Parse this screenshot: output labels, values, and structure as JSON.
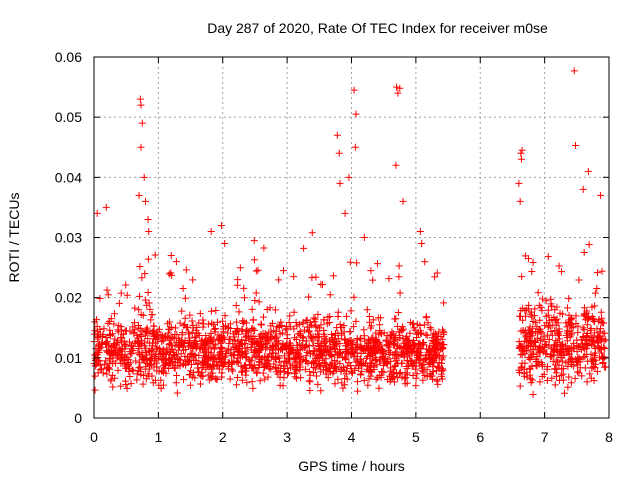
{
  "chart_data": {
    "type": "scatter",
    "title": "Day 287 of 2020, Rate Of TEC Index for receiver m0se",
    "xlabel": "GPS time / hours",
    "ylabel": "ROTI / TECUs",
    "xlim": [
      0,
      8
    ],
    "ylim": [
      0,
      0.06
    ],
    "xticks": [
      "0",
      "1",
      "2",
      "3",
      "4",
      "5",
      "6",
      "7",
      "8"
    ],
    "yticks": [
      "0",
      "0.01",
      "0.02",
      "0.03",
      "0.04",
      "0.05",
      "0.06"
    ],
    "grid": true,
    "marker": "+",
    "color": "#ff0000",
    "series": [
      {
        "name": "ROTI",
        "segments": [
          {
            "x_start": 0.0,
            "x_end": 5.45,
            "base": 0.011,
            "spread": 0.005
          },
          {
            "x_start": 6.6,
            "x_end": 7.95,
            "base": 0.012,
            "spread": 0.006
          }
        ],
        "highlights": [
          [
            0.72,
            0.053
          ],
          [
            0.73,
            0.052
          ],
          [
            0.75,
            0.049
          ],
          [
            0.73,
            0.045
          ],
          [
            0.78,
            0.04
          ],
          [
            0.7,
            0.037
          ],
          [
            0.8,
            0.036
          ],
          [
            0.84,
            0.033
          ],
          [
            0.85,
            0.031
          ],
          [
            0.05,
            0.034
          ],
          [
            0.19,
            0.035
          ],
          [
            3.78,
            0.047
          ],
          [
            3.81,
            0.044
          ],
          [
            4.04,
            0.0545
          ],
          [
            4.07,
            0.0505
          ],
          [
            4.06,
            0.045
          ],
          [
            3.82,
            0.039
          ],
          [
            3.96,
            0.04
          ],
          [
            3.9,
            0.034
          ],
          [
            4.7,
            0.055
          ],
          [
            4.72,
            0.054
          ],
          [
            4.75,
            0.0548
          ],
          [
            4.69,
            0.042
          ],
          [
            4.8,
            0.036
          ],
          [
            6.63,
            0.044
          ],
          [
            6.65,
            0.0445
          ],
          [
            6.64,
            0.043
          ],
          [
            6.6,
            0.039
          ],
          [
            6.62,
            0.036
          ],
          [
            7.46,
            0.0577
          ],
          [
            7.48,
            0.0453
          ],
          [
            7.68,
            0.041
          ],
          [
            7.6,
            0.038
          ],
          [
            7.87,
            0.037
          ],
          [
            1.82,
            0.031
          ],
          [
            1.98,
            0.032
          ],
          [
            2.03,
            0.029
          ],
          [
            1.2,
            0.027
          ],
          [
            1.28,
            0.026
          ],
          [
            4.2,
            0.03
          ],
          [
            5.07,
            0.031
          ],
          [
            5.09,
            0.029
          ]
        ]
      }
    ]
  }
}
